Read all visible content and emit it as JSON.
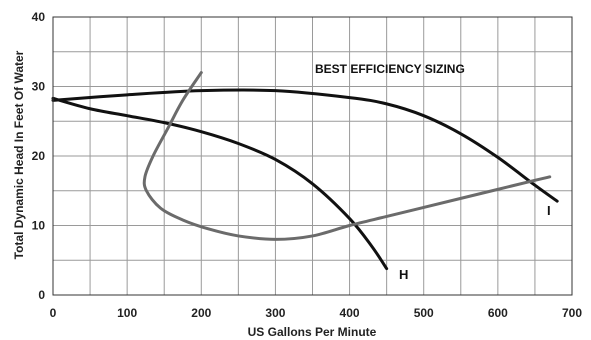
{
  "chart_data": {
    "type": "line",
    "title": "",
    "xlabel": "US Gallons Per Minute",
    "ylabel": "Total Dynamic Head In Feet Of Water",
    "xlim": [
      0,
      700
    ],
    "ylim": [
      0,
      40
    ],
    "x_ticks": [
      0,
      100,
      200,
      300,
      400,
      500,
      600,
      700
    ],
    "y_ticks": [
      0,
      10,
      20,
      30,
      40
    ],
    "x_tick_labels": [
      "0",
      "100",
      "200",
      "300",
      "400",
      "500",
      "600",
      "700"
    ],
    "y_tick_labels": [
      "0",
      "10",
      "20",
      "30",
      "40"
    ],
    "x_grid_step": 50,
    "y_grid_step": 5,
    "grid": true,
    "annotation": "BEST EFFICIENCY SIZING",
    "series": [
      {
        "name": "H",
        "color": "#111111",
        "points": [
          [
            0,
            28.3
          ],
          [
            50,
            26.8
          ],
          [
            100,
            25.8
          ],
          [
            150,
            24.8
          ],
          [
            200,
            23.5
          ],
          [
            250,
            21.8
          ],
          [
            300,
            19.5
          ],
          [
            350,
            16.0
          ],
          [
            400,
            11.0
          ],
          [
            430,
            7.0
          ],
          [
            450,
            3.8
          ]
        ]
      },
      {
        "name": "I",
        "color": "#111111",
        "points": [
          [
            0,
            28.0
          ],
          [
            100,
            28.8
          ],
          [
            200,
            29.4
          ],
          [
            300,
            29.4
          ],
          [
            400,
            28.4
          ],
          [
            450,
            27.5
          ],
          [
            500,
            25.8
          ],
          [
            550,
            23.2
          ],
          [
            600,
            19.8
          ],
          [
            650,
            15.8
          ],
          [
            680,
            13.5
          ]
        ]
      },
      {
        "name": "",
        "color": "#6b6b6b",
        "points": [
          [
            200,
            32.0
          ],
          [
            175,
            28.0
          ],
          [
            155,
            24.0
          ],
          [
            135,
            20.0
          ],
          [
            124,
            17.0
          ],
          [
            126,
            15.0
          ],
          [
            145,
            12.5
          ],
          [
            175,
            10.8
          ],
          [
            210,
            9.5
          ],
          [
            250,
            8.5
          ],
          [
            300,
            8.0
          ],
          [
            350,
            8.5
          ],
          [
            400,
            10.0
          ],
          [
            450,
            11.3
          ],
          [
            500,
            12.6
          ],
          [
            550,
            13.9
          ],
          [
            600,
            15.2
          ],
          [
            650,
            16.5
          ],
          [
            670,
            17.0
          ]
        ]
      }
    ]
  }
}
